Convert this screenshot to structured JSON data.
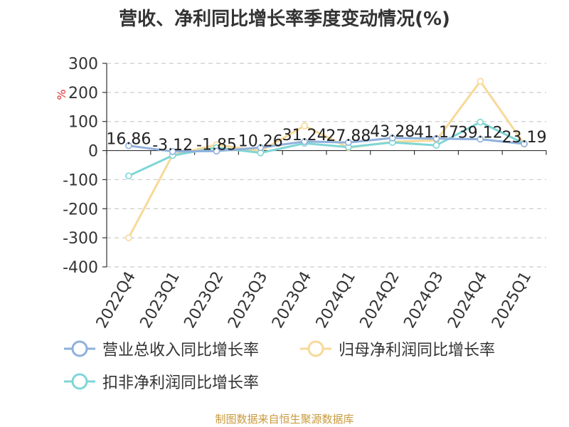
{
  "title": "营收、净利同比增长率季度变动情况(%)",
  "source": "制图数据来自恒生聚源数据库",
  "colors": {
    "revenue": "#8fb0dc",
    "net_profit": "#f7d998",
    "deducted_profit": "#7fd6d6",
    "grid": "#cccccc",
    "axis": "#333333",
    "unit_label": "#e03030"
  },
  "chart_data": {
    "type": "line",
    "ylabel": "%",
    "ylim": [
      -400,
      300
    ],
    "yticks": [
      300,
      200,
      100,
      0,
      -100,
      -200,
      -300,
      -400
    ],
    "grid": true,
    "legend_position": "bottom",
    "categories": [
      "2022Q4",
      "2023Q1",
      "2023Q2",
      "2023Q3",
      "2023Q4",
      "2024Q1",
      "2024Q2",
      "2024Q3",
      "2024Q4",
      "2025Q1"
    ],
    "series": [
      {
        "name": "营业总收入同比增长率",
        "key": "revenue",
        "values": [
          16.86,
          -3.12,
          -1.85,
          10.26,
          31.24,
          27.88,
          43.28,
          41.17,
          39.12,
          23.19
        ],
        "labels": [
          "16.86",
          "-3.12",
          "-1.85",
          "10.26",
          "31.24",
          "27.88",
          "43.28",
          "41.17",
          "39.12",
          "23.19"
        ]
      },
      {
        "name": "归母净利润同比增长率",
        "key": "net_profit",
        "values": [
          -300,
          -15,
          20,
          -2,
          85,
          10,
          30,
          35,
          238,
          22
        ]
      },
      {
        "name": "扣非净利润同比增长率",
        "key": "deducted_profit",
        "values": [
          -87,
          -17,
          10,
          -8,
          25,
          12,
          28,
          18,
          98,
          24
        ]
      }
    ]
  }
}
